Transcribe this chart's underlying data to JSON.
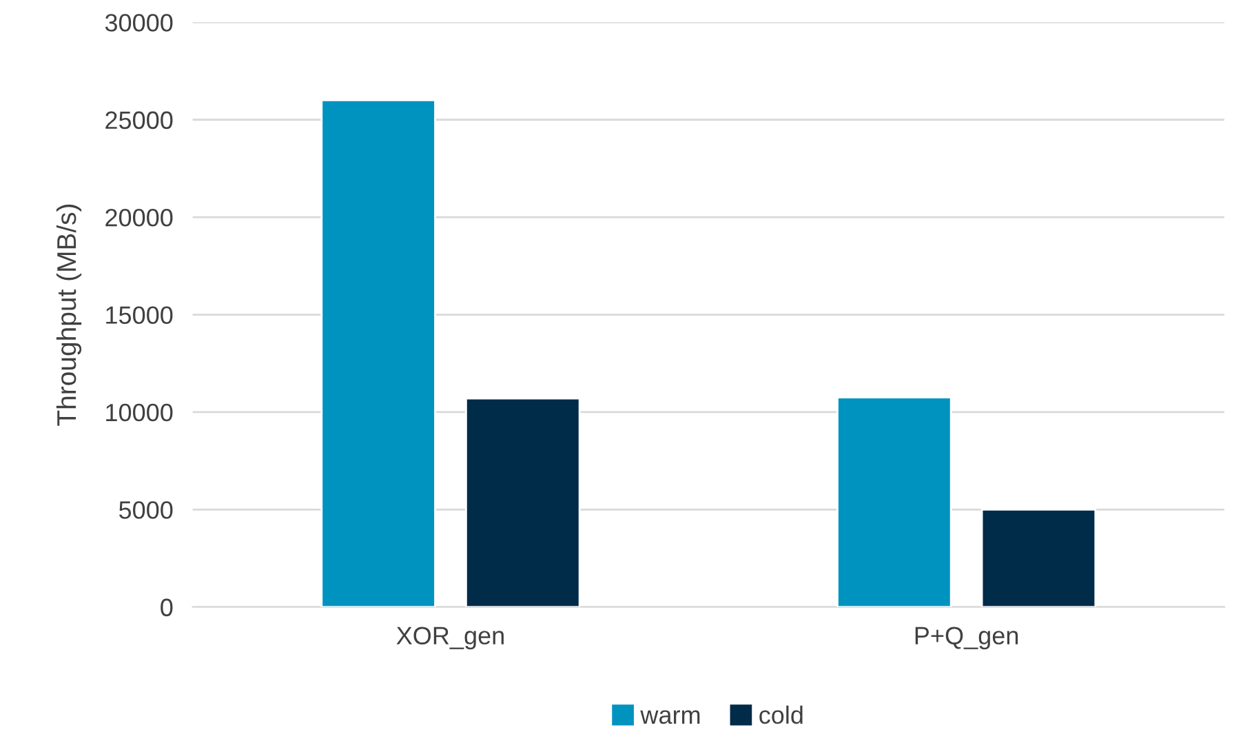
{
  "chart_data": {
    "type": "bar",
    "ylabel": "Throughput (MB/s)",
    "categories": [
      "XOR_gen",
      "P+Q_gen"
    ],
    "series": [
      {
        "name": "warm",
        "color": "#0093c0",
        "values": [
          26000,
          10750
        ]
      },
      {
        "name": "cold",
        "color": "#002b49",
        "values": [
          10700,
          5000
        ]
      }
    ],
    "ylim": [
      0,
      30000
    ],
    "yticks": [
      0,
      5000,
      10000,
      15000,
      20000,
      25000,
      30000
    ],
    "grid": "y",
    "legend": "bottom"
  }
}
